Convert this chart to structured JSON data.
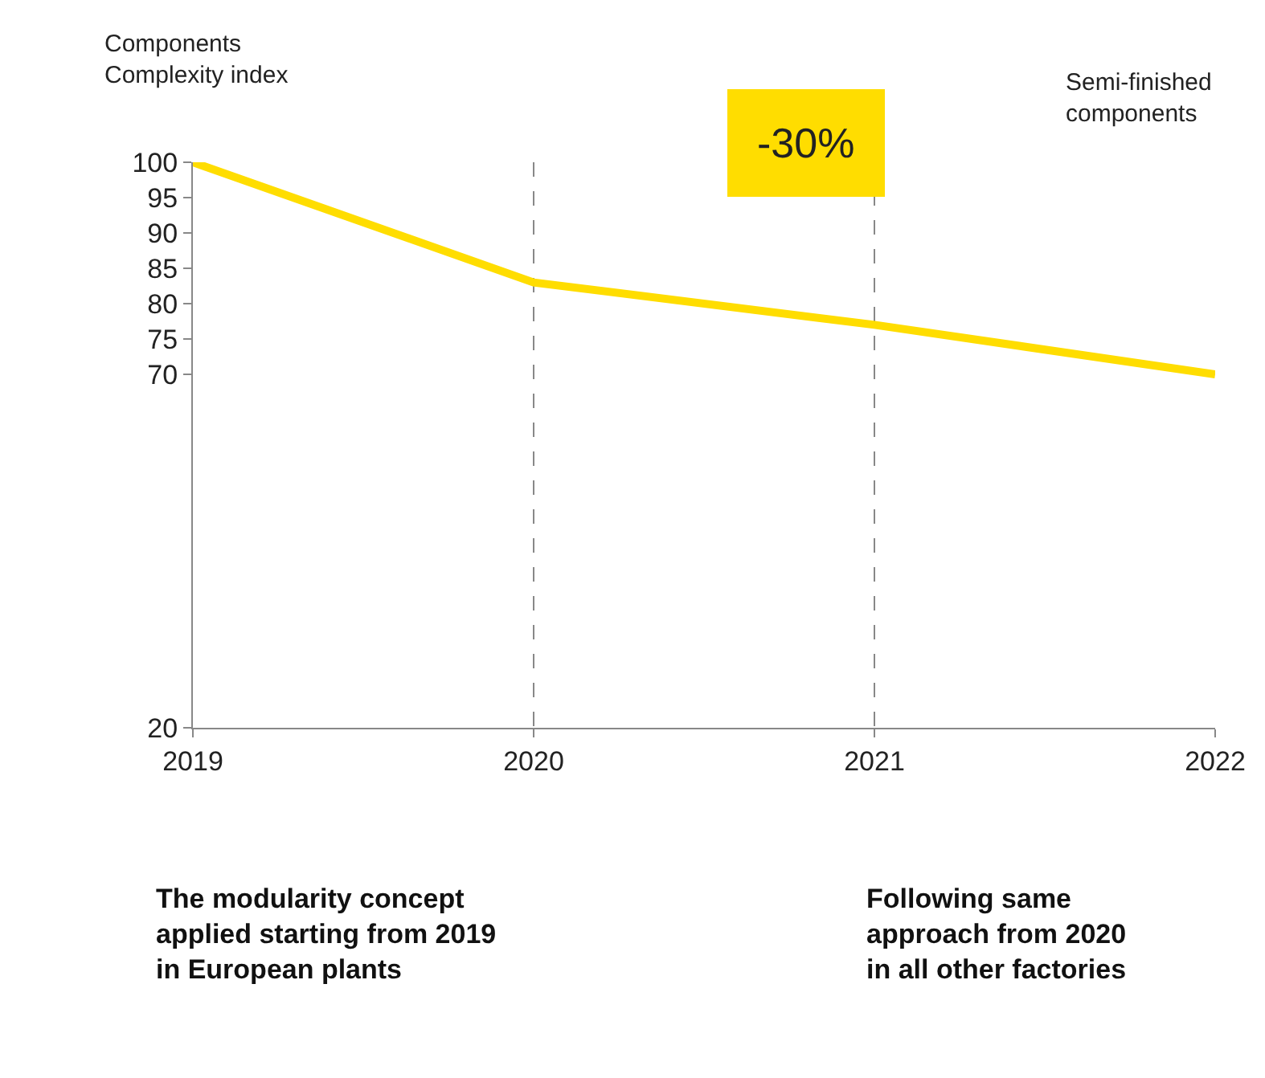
{
  "chart_data": {
    "type": "line",
    "ylabel": "Components\nComplexity index",
    "x": [
      2019,
      2020,
      2021,
      2022
    ],
    "series": [
      {
        "color": "#ffdd00",
        "values": [
          100,
          83,
          77,
          70
        ]
      }
    ],
    "xlim": [
      2019,
      2022
    ],
    "xticks": [
      2019,
      2020,
      2021,
      2022
    ],
    "ylim": [
      20,
      100
    ],
    "yticks": [
      20,
      70,
      75,
      80,
      85,
      90,
      95,
      100
    ],
    "grid": "x",
    "legend": false,
    "marker": "none",
    "line_style": "solid",
    "annotations": [
      "-30%",
      "Semi-finished\ncomponents",
      "The modularity concept\napplied starting from 2019\nin European plants",
      "Following same\napproach from 2020\nin all other factories"
    ]
  }
}
